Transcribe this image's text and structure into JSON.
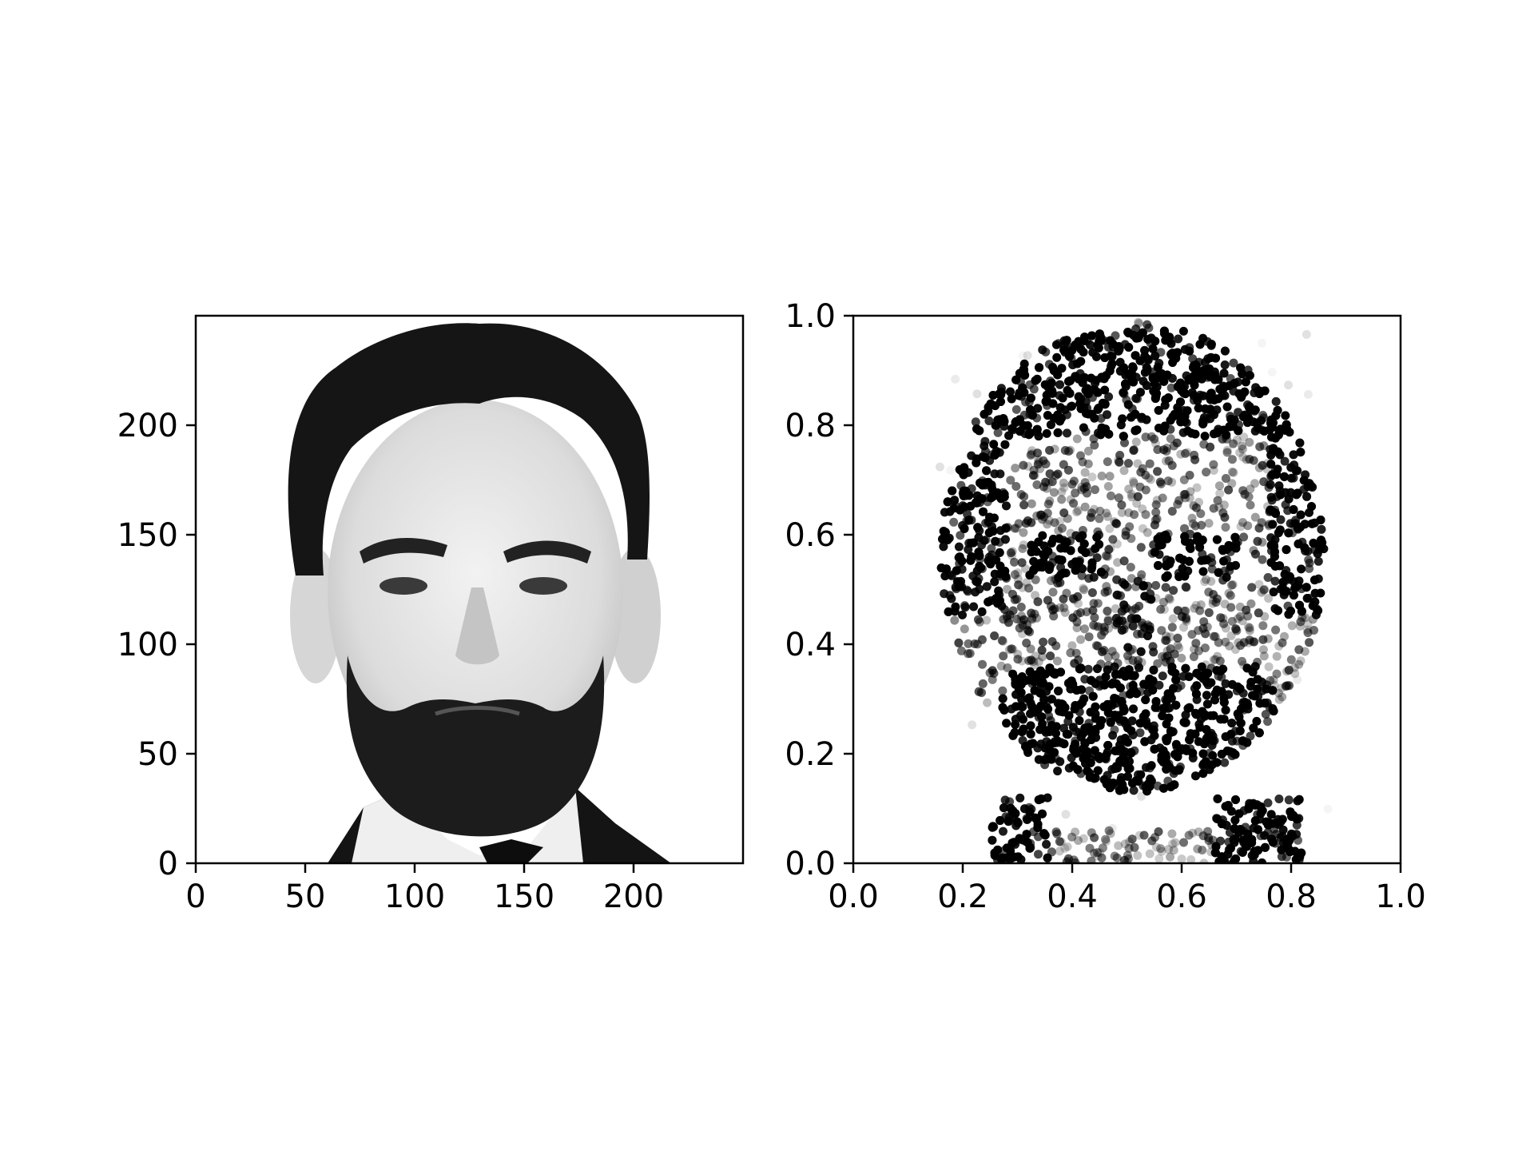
{
  "figure": {
    "background": "#ffffff"
  },
  "chart_data": [
    {
      "type": "image",
      "content": "grayscale portrait photograph of a bearded man",
      "xlim": [
        0,
        250
      ],
      "ylim": [
        0,
        250
      ],
      "xticks": [
        0,
        50,
        100,
        150,
        200
      ],
      "yticks": [
        0,
        50,
        100,
        150,
        200
      ],
      "xtick_labels": [
        "0",
        "50",
        "100",
        "150",
        "200"
      ],
      "ytick_labels": [
        "0",
        "50",
        "100",
        "150",
        "200"
      ],
      "title": "",
      "xlabel": "",
      "ylabel": ""
    },
    {
      "type": "scatter",
      "content": "stippled scatter rendering of the same portrait; point opacity encodes pixel darkness",
      "xlim": [
        0.0,
        1.0
      ],
      "ylim": [
        0.0,
        1.0
      ],
      "xticks": [
        0.0,
        0.2,
        0.4,
        0.6,
        0.8,
        1.0
      ],
      "yticks": [
        0.0,
        0.2,
        0.4,
        0.6,
        0.8,
        1.0
      ],
      "xtick_labels": [
        "0.0",
        "0.2",
        "0.4",
        "0.6",
        "0.8",
        "1.0"
      ],
      "ytick_labels": [
        "0.0",
        "0.2",
        "0.4",
        "0.6",
        "0.8",
        "1.0"
      ],
      "marker_color": "#000000",
      "title": "",
      "xlabel": "",
      "ylabel": "",
      "point_count_approx": 5000
    }
  ]
}
